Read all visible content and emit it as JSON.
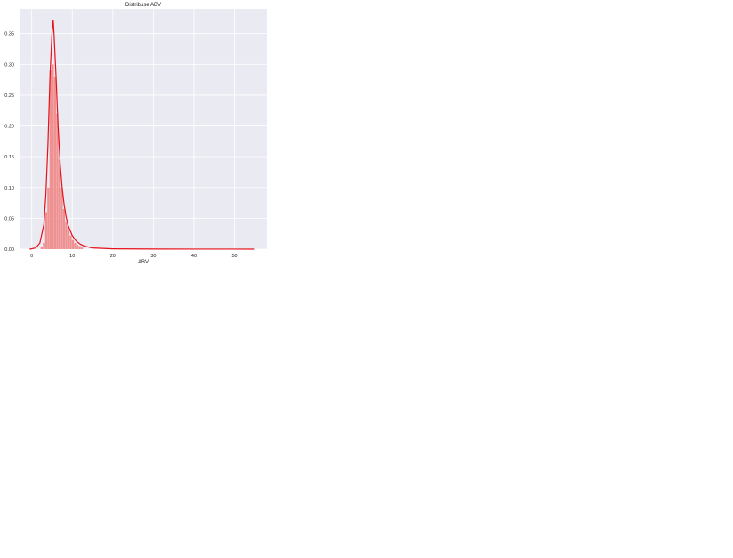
{
  "chart_data": {
    "type": "histogram",
    "title": "Distribuse ABV",
    "xlabel": "ABV",
    "ylabel": "",
    "xlim": [
      -3,
      58
    ],
    "ylim": [
      0,
      0.39
    ],
    "x_ticks": [
      0,
      10,
      20,
      30,
      40,
      50
    ],
    "y_ticks": [
      0.0,
      0.05,
      0.1,
      0.15,
      0.2,
      0.25,
      0.3,
      0.35
    ],
    "x_tick_labels": [
      "0",
      "10",
      "20",
      "30",
      "40",
      "50"
    ],
    "y_tick_labels": [
      "0.00",
      "0.05",
      "0.10",
      "0.15",
      "0.20",
      "0.25",
      "0.30",
      "0.35"
    ],
    "grid": true,
    "bin_width": 0.55,
    "bins": [
      {
        "x0": 2.2,
        "density": 0.004
      },
      {
        "x0": 2.75,
        "density": 0.01
      },
      {
        "x0": 3.3,
        "density": 0.06
      },
      {
        "x0": 3.85,
        "density": 0.1
      },
      {
        "x0": 4.4,
        "density": 0.29
      },
      {
        "x0": 4.95,
        "density": 0.3
      },
      {
        "x0": 5.5,
        "density": 0.28
      },
      {
        "x0": 6.05,
        "density": 0.22
      },
      {
        "x0": 6.6,
        "density": 0.145
      },
      {
        "x0": 7.15,
        "density": 0.1
      },
      {
        "x0": 7.7,
        "density": 0.065
      },
      {
        "x0": 8.25,
        "density": 0.045
      },
      {
        "x0": 8.8,
        "density": 0.032
      },
      {
        "x0": 9.35,
        "density": 0.022
      },
      {
        "x0": 9.9,
        "density": 0.015
      },
      {
        "x0": 10.45,
        "density": 0.01
      },
      {
        "x0": 11.0,
        "density": 0.007
      },
      {
        "x0": 11.55,
        "density": 0.005
      },
      {
        "x0": 12.1,
        "density": 0.003
      }
    ],
    "kde": {
      "x": [
        -0.5,
        1,
        2,
        3,
        3.5,
        4,
        4.5,
        5,
        5.3,
        5.5,
        6,
        6.5,
        7,
        7.5,
        8,
        8.5,
        9,
        10,
        11,
        12,
        13,
        15,
        20,
        30,
        40,
        50,
        55
      ],
      "y": [
        0.0,
        0.002,
        0.01,
        0.04,
        0.09,
        0.17,
        0.28,
        0.35,
        0.372,
        0.35,
        0.28,
        0.2,
        0.14,
        0.1,
        0.072,
        0.052,
        0.038,
        0.022,
        0.013,
        0.008,
        0.005,
        0.002,
        0.0005,
        0.0002,
        0.0001,
        0.0001,
        0.0
      ]
    },
    "colors": {
      "bar": "#f08080",
      "kde": "#e8101a",
      "plot_bg": "#eaeaf2",
      "grid": "#ffffff"
    }
  }
}
